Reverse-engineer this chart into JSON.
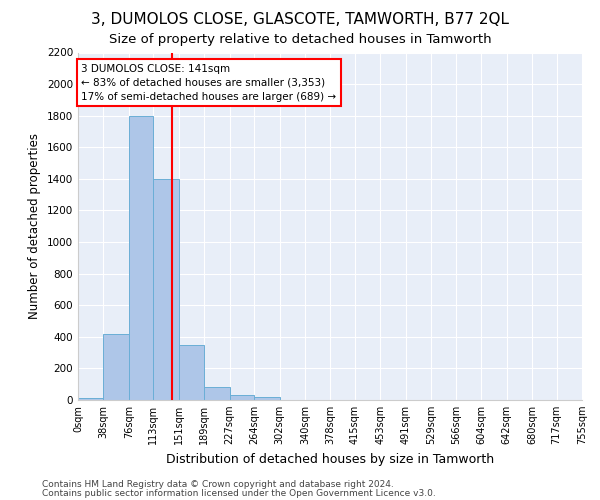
{
  "title": "3, DUMOLOS CLOSE, GLASCOTE, TAMWORTH, B77 2QL",
  "subtitle": "Size of property relative to detached houses in Tamworth",
  "xlabel": "Distribution of detached houses by size in Tamworth",
  "ylabel": "Number of detached properties",
  "footer_line1": "Contains HM Land Registry data © Crown copyright and database right 2024.",
  "footer_line2": "Contains public sector information licensed under the Open Government Licence v3.0.",
  "bin_edges": [
    0,
    38,
    76,
    113,
    151,
    189,
    227,
    264,
    302,
    340,
    378,
    415,
    453,
    491,
    529,
    566,
    604,
    642,
    680,
    717,
    755
  ],
  "bar_heights": [
    15,
    420,
    1800,
    1400,
    350,
    80,
    30,
    18,
    0,
    0,
    0,
    0,
    0,
    0,
    0,
    0,
    0,
    0,
    0,
    0
  ],
  "bar_color": "#aec6e8",
  "bar_edge_color": "#6aaed6",
  "property_size": 141,
  "property_line_color": "red",
  "annotation_line1": "3 DUMOLOS CLOSE: 141sqm",
  "annotation_line2": "← 83% of detached houses are smaller (3,353)",
  "annotation_line3": "17% of semi-detached houses are larger (689) →",
  "annotation_box_color": "white",
  "annotation_box_edge_color": "red",
  "ylim": [
    0,
    2200
  ],
  "yticks": [
    0,
    200,
    400,
    600,
    800,
    1000,
    1200,
    1400,
    1600,
    1800,
    2000,
    2200
  ],
  "bg_color": "#ffffff",
  "plot_bg_color": "#e8eef8",
  "grid_color": "#ffffff",
  "title_fontsize": 11,
  "subtitle_fontsize": 9.5,
  "tick_label_fontsize": 7,
  "ylabel_fontsize": 8.5,
  "xlabel_fontsize": 9,
  "footer_fontsize": 6.5
}
